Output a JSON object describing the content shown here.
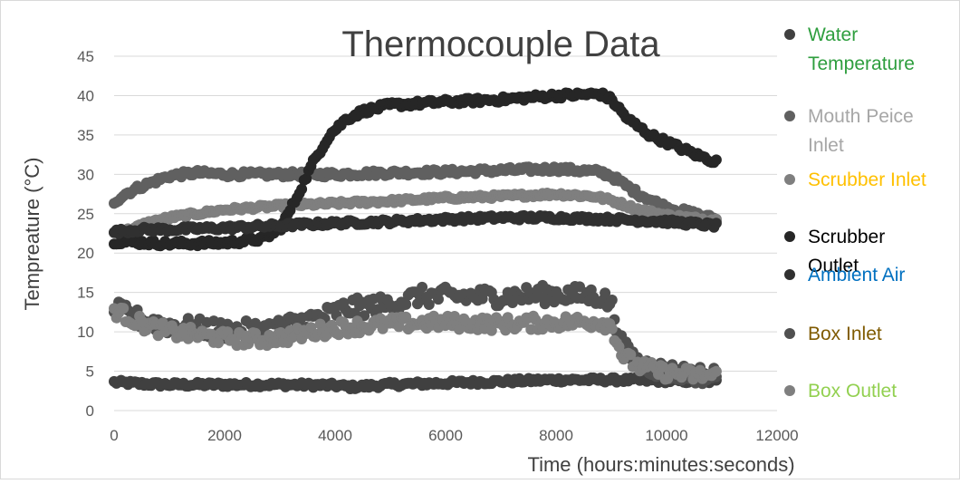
{
  "chart_data": {
    "type": "scatter",
    "title": "Thermocouple Data",
    "xlabel": "Time  (hours:minutes:seconds)",
    "ylabel": "Tempreature (°C)",
    "xlim": [
      0,
      12000
    ],
    "ylim": [
      0,
      45
    ],
    "xticks": [
      0,
      2000,
      4000,
      6000,
      8000,
      10000,
      12000
    ],
    "yticks": [
      0,
      5,
      10,
      15,
      20,
      25,
      30,
      35,
      40,
      45
    ],
    "grid": true,
    "legend_position": "right",
    "series": [
      {
        "name_lines": [
          "Water",
          "Temperature"
        ],
        "label_color": "#2e9e3e",
        "marker_color": "#404040",
        "noise": 0.3,
        "points": [
          [
            0,
            3.6
          ],
          [
            500,
            3.4
          ],
          [
            1000,
            3.3
          ],
          [
            2000,
            3.3
          ],
          [
            3000,
            3.3
          ],
          [
            4000,
            3.2
          ],
          [
            4300,
            3.0
          ],
          [
            5000,
            3.3
          ],
          [
            6000,
            3.5
          ],
          [
            7000,
            3.7
          ],
          [
            8000,
            3.9
          ],
          [
            9000,
            3.9
          ],
          [
            10000,
            3.8
          ],
          [
            10900,
            3.7
          ]
        ]
      },
      {
        "name_lines": [
          "Mouth Peice",
          "Inlet"
        ],
        "label_color": "#a6a6a6",
        "marker_color": "#606060",
        "noise": 0.35,
        "points": [
          [
            0,
            26.5
          ],
          [
            200,
            27.5
          ],
          [
            500,
            28.5
          ],
          [
            1000,
            29.8
          ],
          [
            1500,
            30.2
          ],
          [
            2000,
            30.0
          ],
          [
            3000,
            30.0
          ],
          [
            4000,
            30.0
          ],
          [
            5000,
            30.2
          ],
          [
            6000,
            30.3
          ],
          [
            7000,
            30.5
          ],
          [
            8000,
            30.7
          ],
          [
            8800,
            30.3
          ],
          [
            9000,
            29.8
          ],
          [
            9500,
            27.5
          ],
          [
            10000,
            25.8
          ],
          [
            10500,
            25.0
          ],
          [
            10900,
            24.3
          ]
        ]
      },
      {
        "name_lines": [
          "Scrubber Inlet"
        ],
        "label_color": "#ffc000",
        "marker_color": "#7f7f7f",
        "noise": 0.25,
        "points": [
          [
            0,
            22.5
          ],
          [
            300,
            23.0
          ],
          [
            600,
            23.8
          ],
          [
            1000,
            24.5
          ],
          [
            1500,
            25.0
          ],
          [
            2000,
            25.5
          ],
          [
            3000,
            26.0
          ],
          [
            4000,
            26.3
          ],
          [
            5000,
            26.6
          ],
          [
            6000,
            27.0
          ],
          [
            7000,
            27.2
          ],
          [
            8000,
            27.5
          ],
          [
            8700,
            27.2
          ],
          [
            9000,
            26.7
          ],
          [
            9500,
            25.5
          ],
          [
            10000,
            24.8
          ],
          [
            10500,
            24.4
          ],
          [
            10900,
            24.2
          ]
        ]
      },
      {
        "name_lines": [
          "Scrubber",
          "Outlet"
        ],
        "label_color": "#000000",
        "marker_color": "#262626",
        "noise": 0.35,
        "points": [
          [
            0,
            21.5
          ],
          [
            1000,
            21.2
          ],
          [
            2000,
            21.3
          ],
          [
            2700,
            21.8
          ],
          [
            3000,
            23.0
          ],
          [
            3300,
            27.0
          ],
          [
            3600,
            31.5
          ],
          [
            3900,
            35.0
          ],
          [
            4200,
            37.0
          ],
          [
            4500,
            38.0
          ],
          [
            5000,
            38.8
          ],
          [
            6000,
            39.2
          ],
          [
            7000,
            39.5
          ],
          [
            8000,
            40.0
          ],
          [
            8800,
            40.2
          ],
          [
            9000,
            39.5
          ],
          [
            9300,
            37.0
          ],
          [
            9700,
            35.0
          ],
          [
            10200,
            33.5
          ],
          [
            10600,
            32.3
          ],
          [
            10900,
            31.6
          ]
        ]
      },
      {
        "name_lines": [
          "Ambient Air"
        ],
        "label_color": "#0070c0",
        "marker_color": "#303030",
        "noise": 0.3,
        "points": [
          [
            0,
            22.7
          ],
          [
            500,
            23.0
          ],
          [
            1000,
            23.0
          ],
          [
            2000,
            23.2
          ],
          [
            3000,
            23.5
          ],
          [
            4000,
            23.8
          ],
          [
            5000,
            24.0
          ],
          [
            6000,
            24.3
          ],
          [
            7000,
            24.5
          ],
          [
            8000,
            24.5
          ],
          [
            9000,
            24.3
          ],
          [
            10000,
            24.0
          ],
          [
            10900,
            23.5
          ]
        ]
      },
      {
        "name_lines": [
          "Box Inlet"
        ],
        "label_color": "#7f5a00",
        "marker_color": "#505050",
        "noise": 1.2,
        "points": [
          [
            0,
            12.8
          ],
          [
            500,
            11.5
          ],
          [
            1000,
            10.8
          ],
          [
            2000,
            10.2
          ],
          [
            2700,
            10.2
          ],
          [
            3200,
            11.0
          ],
          [
            3800,
            12.0
          ],
          [
            4200,
            13.0
          ],
          [
            5000,
            13.5
          ],
          [
            5500,
            14.5
          ],
          [
            6000,
            14.5
          ],
          [
            7000,
            14.5
          ],
          [
            8000,
            14.8
          ],
          [
            8800,
            14.5
          ],
          [
            9000,
            13.5
          ],
          [
            9200,
            8.0
          ],
          [
            9500,
            6.0
          ],
          [
            10000,
            5.0
          ],
          [
            10500,
            4.6
          ],
          [
            10900,
            4.4
          ]
        ]
      },
      {
        "name_lines": [
          "Box Outlet"
        ],
        "label_color": "#92d050",
        "marker_color": "#7f7f7f",
        "noise": 0.9,
        "points": [
          [
            0,
            12.8
          ],
          [
            500,
            11.0
          ],
          [
            1000,
            10.0
          ],
          [
            2000,
            9.2
          ],
          [
            2700,
            9.0
          ],
          [
            3200,
            9.5
          ],
          [
            4000,
            10.5
          ],
          [
            5000,
            11.0
          ],
          [
            6000,
            11.2
          ],
          [
            7000,
            11.0
          ],
          [
            8000,
            11.2
          ],
          [
            8800,
            11.3
          ],
          [
            9000,
            10.8
          ],
          [
            9200,
            7.0
          ],
          [
            9500,
            5.6
          ],
          [
            10000,
            4.8
          ],
          [
            10500,
            4.5
          ],
          [
            10900,
            4.4
          ]
        ]
      }
    ]
  }
}
